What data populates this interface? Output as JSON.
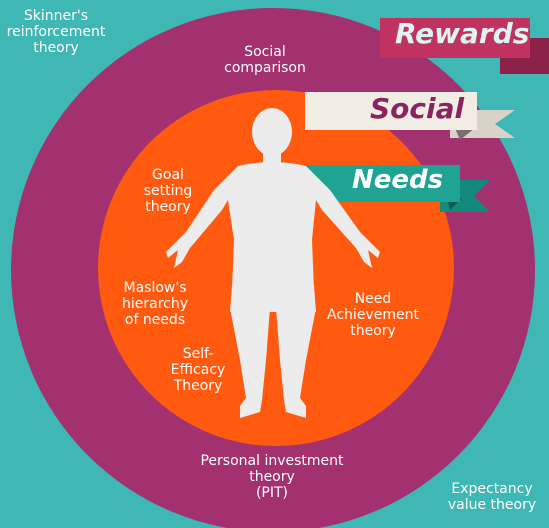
{
  "colors": {
    "background": "#3fb7b4",
    "outer_ring": "#a3306f",
    "inner_circle": "#ff5a10",
    "figure": "#ececec",
    "rewards_ribbon": "#c0325f",
    "social_ribbon": "#f2ede4",
    "needs_ribbon": "#1fa392",
    "rewards_text": "#dff3f2",
    "social_text": "#8a2460",
    "needs_text": "#ffffff"
  },
  "ribbons": {
    "rewards": "Rewards",
    "social": "Social",
    "needs": "Needs"
  },
  "labels": {
    "skinner": "Skinner's\nreinforcement\ntheory",
    "social_comparison": "Social\ncomparison",
    "goal_setting": "Goal\nsetting\ntheory",
    "maslow": "Maslow's\nhierarchy\nof needs",
    "self_efficacy": "Self-\nEfficacy\nTheory",
    "need_achievement": "Need\nAchievement\ntheory",
    "personal_investment": "Personal investment\ntheory\n(PIT)",
    "expectancy_value": "Expectancy\nvalue theory"
  }
}
